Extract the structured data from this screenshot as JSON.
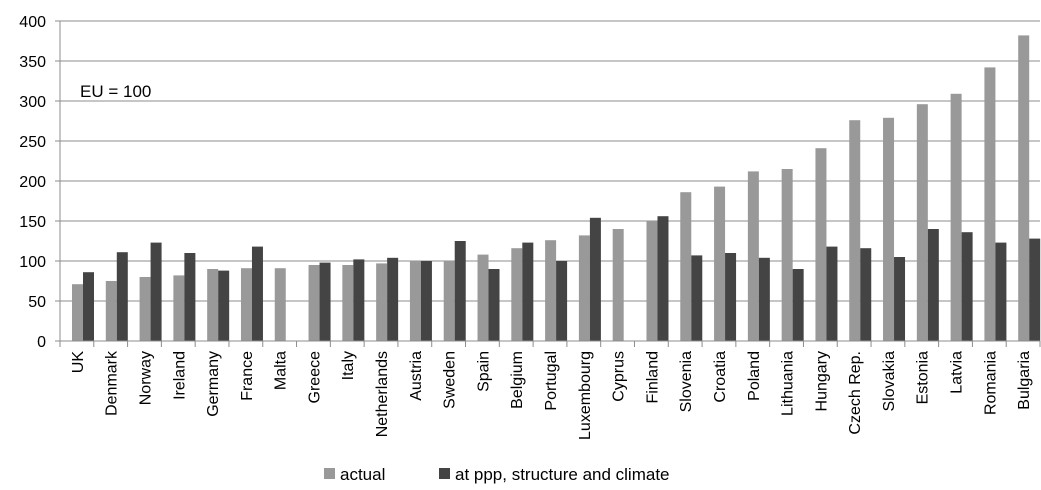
{
  "chart_data": {
    "type": "bar",
    "title": "",
    "annotation": "EU = 100",
    "xlabel": "",
    "ylabel": "",
    "ylim": [
      0,
      400
    ],
    "yticks": [
      0,
      50,
      100,
      150,
      200,
      250,
      300,
      350,
      400
    ],
    "grid": true,
    "legend_position": "bottom",
    "categories": [
      "UK",
      "Denmark",
      "Norway",
      "Ireland",
      "Germany",
      "France",
      "Malta",
      "Greece",
      "Italy",
      "Netherlands",
      "Austria",
      "Sweden",
      "Spain",
      "Belgium",
      "Portugal",
      "Luxembourg",
      "Cyprus",
      "Finland",
      "Slovenia",
      "Croatia",
      "Poland",
      "Lithuania",
      "Hungary",
      "Czech Rep.",
      "Slovakia",
      "Estonia",
      "Latvia",
      "Romania",
      "Bulgaria"
    ],
    "series": [
      {
        "name": "actual",
        "color": "#999999",
        "values": [
          71,
          75,
          80,
          82,
          90,
          91,
          91,
          95,
          95,
          97,
          100,
          100,
          108,
          116,
          126,
          132,
          140,
          150,
          186,
          193,
          212,
          215,
          241,
          276,
          279,
          296,
          309,
          342,
          382
        ]
      },
      {
        "name": "at ppp, structure and climate",
        "color": "#444444",
        "values": [
          86,
          111,
          123,
          110,
          88,
          118,
          null,
          98,
          102,
          104,
          100,
          125,
          90,
          123,
          100,
          154,
          null,
          156,
          107,
          110,
          104,
          90,
          118,
          116,
          105,
          140,
          136,
          123,
          128
        ]
      }
    ]
  }
}
